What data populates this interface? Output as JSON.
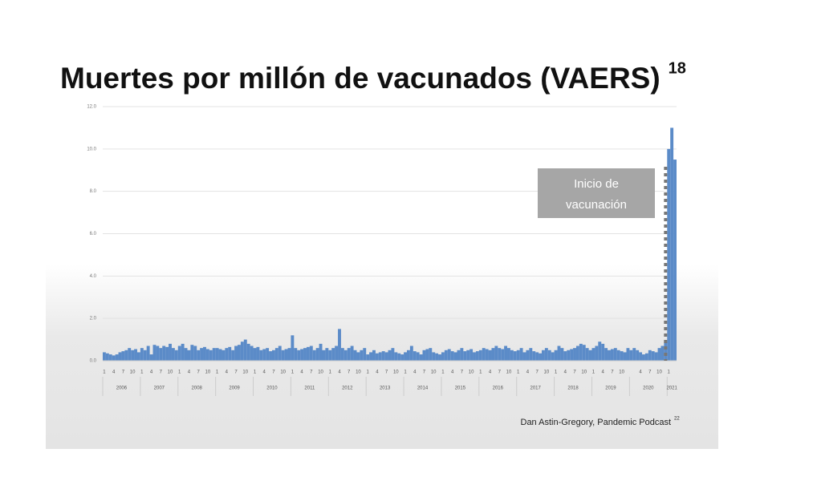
{
  "chart_data": {
    "type": "bar",
    "title": "Muertes por millón de vacunados (VAERS)",
    "title_superscript": "18",
    "source": "Dan Astin-Gregory, Pandemic Podcast",
    "source_superscript": "22",
    "annotation": [
      "Inicio de",
      "vacunación"
    ],
    "color": "#5b8bc8",
    "grid": true,
    "ylim": [
      0,
      12
    ],
    "yticks": [
      {
        "value": 0,
        "label": "0.0"
      },
      {
        "value": 2,
        "label": "2.0"
      },
      {
        "value": 4,
        "label": "4.0"
      },
      {
        "value": 6,
        "label": "6.0"
      },
      {
        "value": 8,
        "label": "8.0"
      },
      {
        "value": 10,
        "label": "10.0"
      },
      {
        "value": 12,
        "label": "12.0"
      }
    ],
    "years": [
      "2006",
      "2007",
      "2008",
      "2009",
      "2010",
      "2011",
      "2012",
      "2013",
      "2014",
      "2015",
      "2016",
      "2017",
      "2018",
      "2019",
      "2020",
      "2021"
    ],
    "categories": [
      "1",
      null,
      null,
      "4",
      null,
      null,
      "7",
      null,
      null,
      "10",
      null,
      null,
      "1",
      null,
      null,
      "4",
      null,
      null,
      "7",
      null,
      null,
      "10",
      null,
      null,
      "1",
      null,
      null,
      "4",
      null,
      null,
      "7",
      null,
      null,
      "10",
      null,
      null,
      "1",
      null,
      null,
      "4",
      null,
      null,
      "7",
      null,
      null,
      "10",
      null,
      null,
      "1",
      null,
      null,
      "4",
      null,
      null,
      "7",
      null,
      null,
      "10",
      null,
      null,
      "1",
      null,
      null,
      "4",
      null,
      null,
      "7",
      null,
      null,
      "10",
      null,
      null,
      "1",
      null,
      null,
      "4",
      null,
      null,
      "7",
      null,
      null,
      "10",
      null,
      null,
      "1",
      null,
      null,
      "4",
      null,
      null,
      "7",
      null,
      null,
      "10",
      null,
      null,
      "1",
      null,
      null,
      "4",
      null,
      null,
      "7",
      null,
      null,
      "10",
      null,
      null,
      "1",
      null,
      null,
      "4",
      null,
      null,
      "7",
      null,
      null,
      "10",
      null,
      null,
      "1",
      null,
      null,
      "4",
      null,
      null,
      "7",
      null,
      null,
      "10",
      null,
      null,
      "1",
      null,
      null,
      "4",
      null,
      null,
      "7",
      null,
      null,
      "10",
      null,
      null,
      "1",
      null,
      null,
      "4",
      null,
      null,
      "7",
      null,
      null,
      "10",
      null,
      null,
      "1",
      null,
      null,
      "4",
      null,
      null,
      "7",
      null,
      null,
      "10",
      null,
      null,
      null,
      null,
      null,
      "4",
      null,
      null,
      "7",
      null,
      null,
      "10",
      null,
      null,
      "1",
      null,
      null
    ],
    "values": [
      0.4,
      0.35,
      0.3,
      0.25,
      0.3,
      0.4,
      0.45,
      0.5,
      0.6,
      0.5,
      0.55,
      0.4,
      0.6,
      0.5,
      0.7,
      0.3,
      0.75,
      0.7,
      0.6,
      0.7,
      0.65,
      0.8,
      0.6,
      0.5,
      0.7,
      0.8,
      0.6,
      0.5,
      0.75,
      0.7,
      0.5,
      0.6,
      0.65,
      0.55,
      0.5,
      0.6,
      0.6,
      0.55,
      0.5,
      0.6,
      0.65,
      0.5,
      0.7,
      0.75,
      0.9,
      1.0,
      0.8,
      0.7,
      0.6,
      0.65,
      0.5,
      0.55,
      0.6,
      0.45,
      0.5,
      0.6,
      0.7,
      0.5,
      0.55,
      0.6,
      1.2,
      0.6,
      0.5,
      0.55,
      0.6,
      0.65,
      0.7,
      0.5,
      0.6,
      0.8,
      0.5,
      0.6,
      0.5,
      0.6,
      0.7,
      1.5,
      0.6,
      0.5,
      0.6,
      0.7,
      0.5,
      0.4,
      0.5,
      0.6,
      0.3,
      0.4,
      0.5,
      0.35,
      0.4,
      0.45,
      0.4,
      0.5,
      0.6,
      0.4,
      0.35,
      0.3,
      0.4,
      0.5,
      0.7,
      0.45,
      0.4,
      0.3,
      0.5,
      0.55,
      0.6,
      0.4,
      0.35,
      0.3,
      0.4,
      0.5,
      0.55,
      0.45,
      0.4,
      0.5,
      0.6,
      0.45,
      0.5,
      0.55,
      0.4,
      0.45,
      0.5,
      0.6,
      0.55,
      0.5,
      0.6,
      0.7,
      0.6,
      0.55,
      0.7,
      0.6,
      0.5,
      0.45,
      0.5,
      0.6,
      0.4,
      0.5,
      0.6,
      0.45,
      0.4,
      0.35,
      0.5,
      0.6,
      0.5,
      0.4,
      0.5,
      0.7,
      0.6,
      0.45,
      0.5,
      0.55,
      0.6,
      0.7,
      0.8,
      0.75,
      0.6,
      0.5,
      0.6,
      0.7,
      0.9,
      0.8,
      0.6,
      0.5,
      0.55,
      0.6,
      0.5,
      0.45,
      0.4,
      0.6,
      0.5,
      0.6,
      0.5,
      0.4,
      0.3,
      0.35,
      0.5,
      0.45,
      0.4,
      0.6,
      0.7,
      0.9,
      10.0,
      11.0,
      9.5
    ]
  }
}
